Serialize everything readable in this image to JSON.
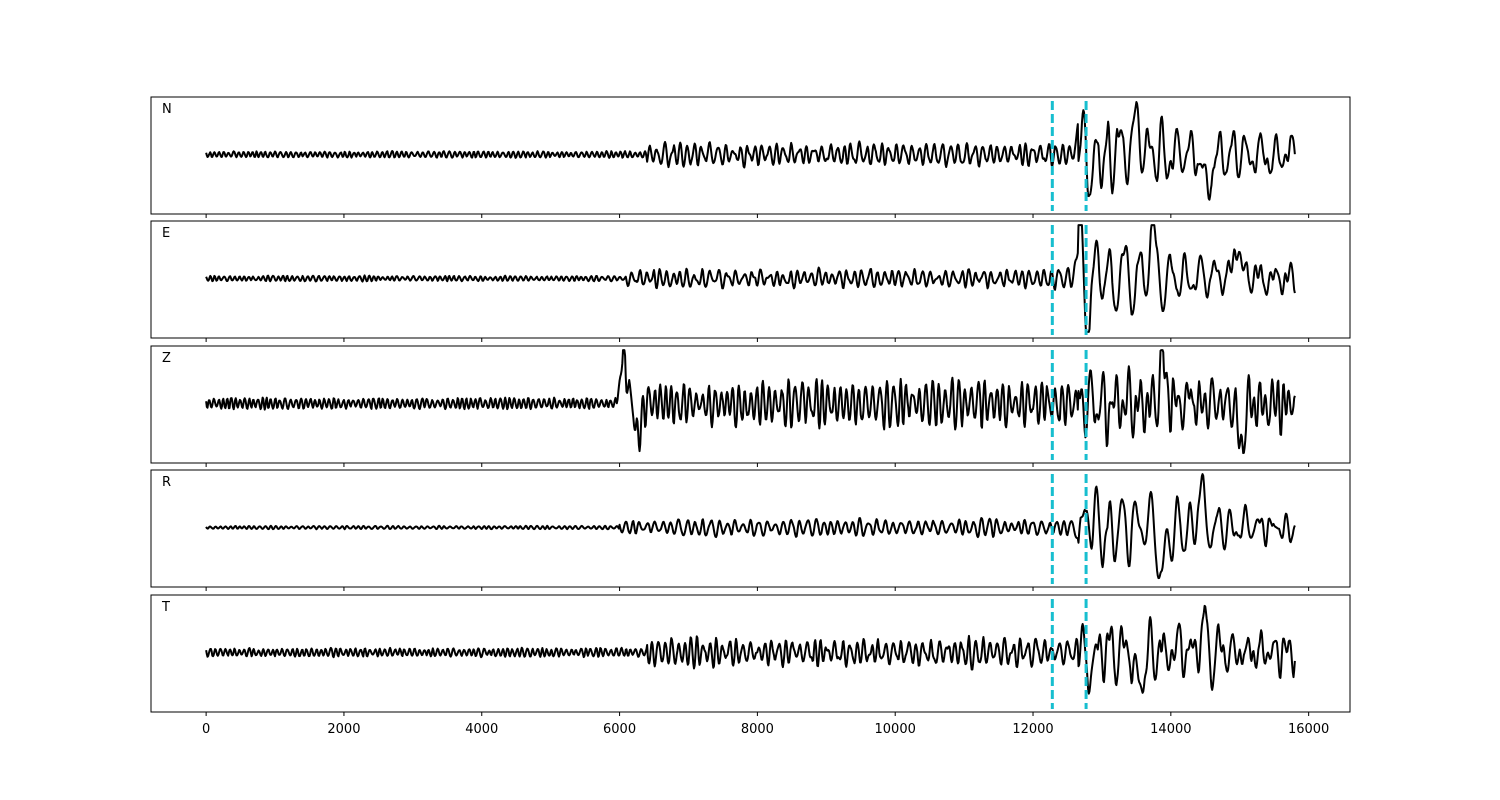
{
  "chart_data": {
    "type": "line",
    "description_axis": "shared x-axis, stacked panels",
    "xlim": [
      -800,
      16600
    ],
    "xticks": [
      0,
      2000,
      4000,
      6000,
      8000,
      10000,
      12000,
      14000,
      16000
    ],
    "xtick_labels": [
      "0",
      "2000",
      "4000",
      "6000",
      "8000",
      "10000",
      "12000",
      "14000",
      "16000"
    ],
    "vlines": [
      12280,
      12770
    ],
    "vline_color": "#17becf",
    "trace_color": "#000000",
    "sample_spacing": 10,
    "x_end": 15800,
    "panels": [
      {
        "label": "N",
        "seed": 11,
        "events": [
          {
            "x": 0,
            "amp": 0.06,
            "period": 70,
            "decay": 1000000000.0
          },
          {
            "x": 6400,
            "amp": 0.18,
            "period": 110,
            "decay": 1000000000.0
          },
          {
            "x": 12660,
            "amp": 0.75,
            "period": 200,
            "decay": 3000
          }
        ],
        "peaks": [
          {
            "x": 12690,
            "y": 0.72
          },
          {
            "x": 12770,
            "y": -0.62
          },
          {
            "x": 13520,
            "y": 0.82
          },
          {
            "x": 14520,
            "y": -0.78
          }
        ]
      },
      {
        "label": "E",
        "seed": 23,
        "events": [
          {
            "x": 0,
            "amp": 0.05,
            "period": 75,
            "decay": 1000000000.0
          },
          {
            "x": 6100,
            "amp": 0.15,
            "period": 110,
            "decay": 1000000000.0
          },
          {
            "x": 12660,
            "amp": 0.8,
            "period": 200,
            "decay": 3000
          }
        ],
        "peaks": [
          {
            "x": 12690,
            "y": 0.85
          },
          {
            "x": 12770,
            "y": -0.78
          },
          {
            "x": 13720,
            "y": 0.88
          },
          {
            "x": 14950,
            "y": 0.62
          }
        ]
      },
      {
        "label": "Z",
        "seed": 37,
        "events": [
          {
            "x": 0,
            "amp": 0.1,
            "period": 70,
            "decay": 1000000000.0
          },
          {
            "x": 6050,
            "amp": 0.38,
            "period": 95,
            "decay": 1000000000.0
          },
          {
            "x": 12660,
            "amp": 0.55,
            "period": 180,
            "decay": 3000
          }
        ],
        "peaks": [
          {
            "x": 6060,
            "y": 0.86
          },
          {
            "x": 6270,
            "y": -0.6
          },
          {
            "x": 13880,
            "y": 0.78
          },
          {
            "x": 15020,
            "y": -0.8
          }
        ]
      },
      {
        "label": "R",
        "seed": 53,
        "events": [
          {
            "x": 0,
            "amp": 0.03,
            "period": 80,
            "decay": 1000000000.0
          },
          {
            "x": 6000,
            "amp": 0.14,
            "period": 115,
            "decay": 1000000000.0
          },
          {
            "x": 12660,
            "amp": 0.8,
            "period": 200,
            "decay": 3000
          }
        ],
        "peaks": [
          {
            "x": 12770,
            "y": 0.85
          },
          {
            "x": 12720,
            "y": -0.85
          },
          {
            "x": 13860,
            "y": -0.9
          },
          {
            "x": 14420,
            "y": 0.55
          }
        ]
      },
      {
        "label": "T",
        "seed": 71,
        "events": [
          {
            "x": 0,
            "amp": 0.08,
            "period": 70,
            "decay": 1000000000.0
          },
          {
            "x": 6400,
            "amp": 0.22,
            "period": 105,
            "decay": 1000000000.0
          },
          {
            "x": 12660,
            "amp": 0.6,
            "period": 200,
            "decay": 3200
          }
        ],
        "peaks": [
          {
            "x": 12770,
            "y": -0.35
          },
          {
            "x": 13550,
            "y": -0.72
          },
          {
            "x": 14510,
            "y": 0.96
          },
          {
            "x": 14560,
            "y": -0.62
          }
        ]
      }
    ]
  }
}
